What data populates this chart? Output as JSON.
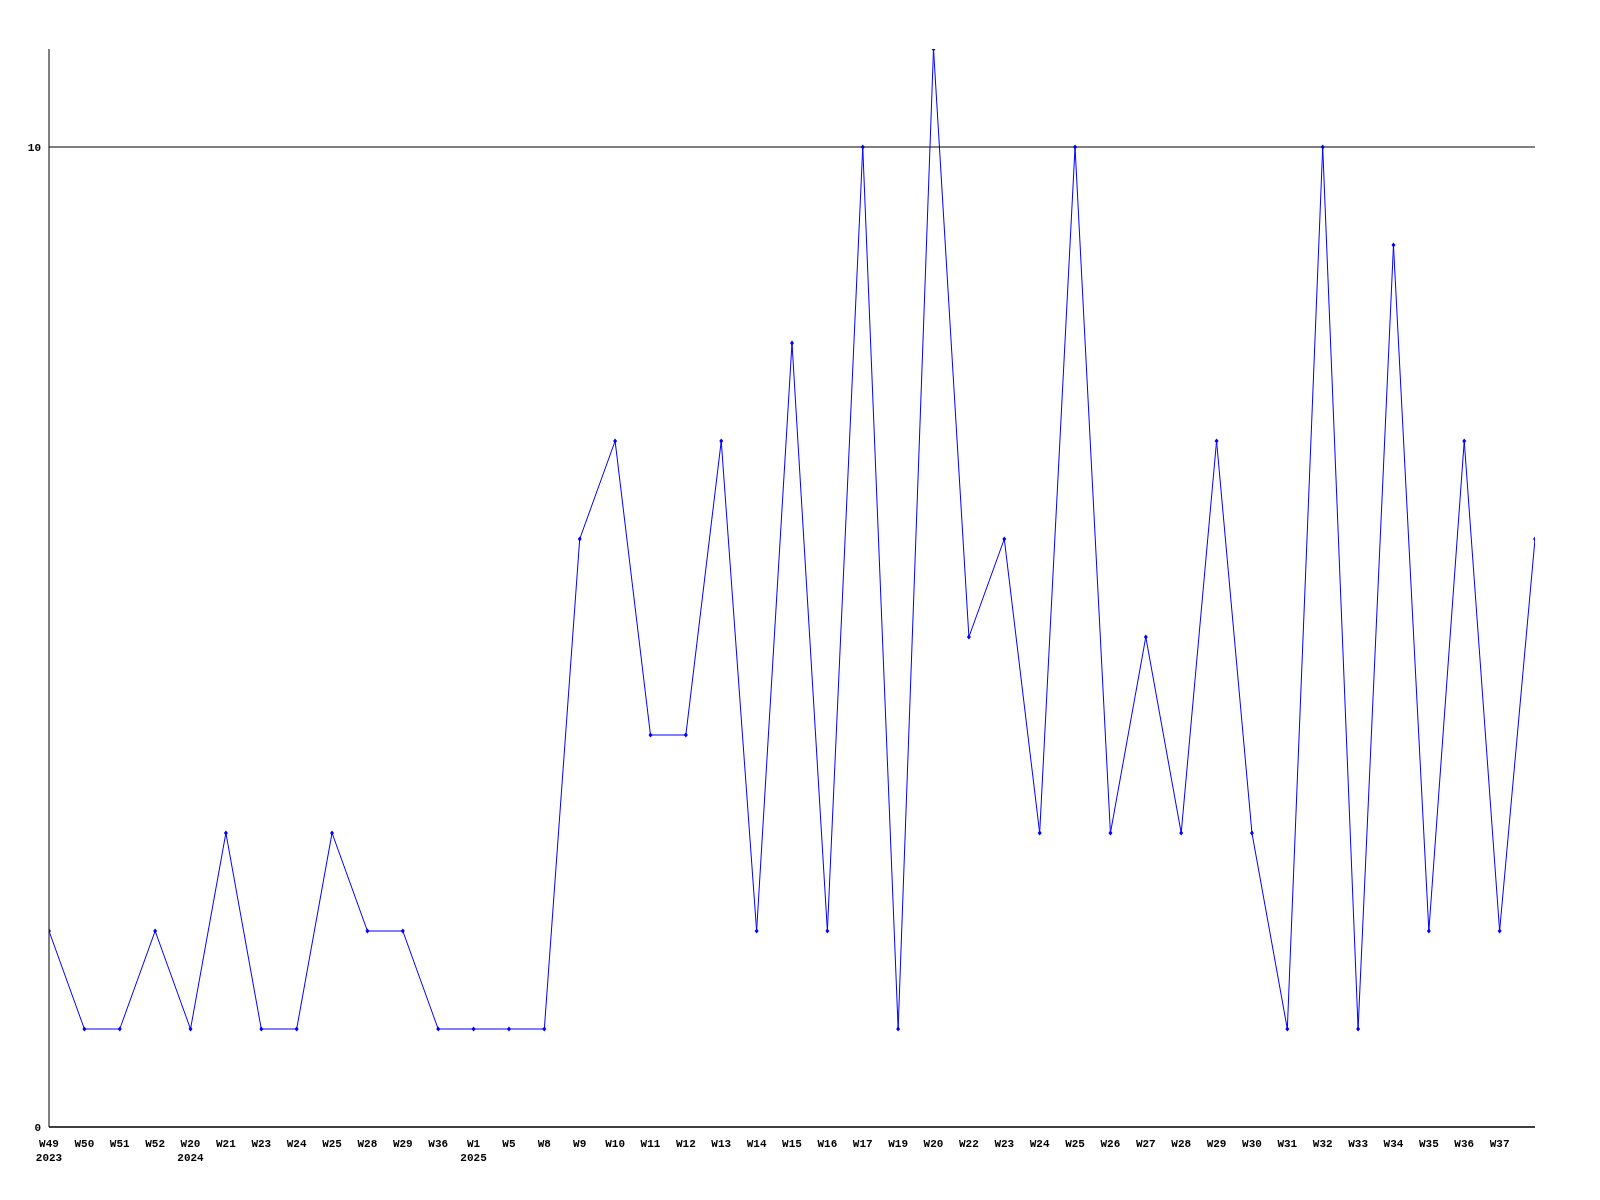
{
  "chart_data": {
    "type": "line",
    "categories": [
      "W49\n2023",
      "W50",
      "W51",
      "W52",
      "W20\n2024",
      "W21",
      "W23",
      "W24",
      "W25",
      "W28",
      "W29",
      "W36",
      "W1\n2025",
      "W5",
      "W8",
      "W9",
      "W10",
      "W11",
      "W12",
      "W13",
      "W14",
      "W15",
      "W16",
      "W17",
      "W19",
      "W20",
      "W22",
      "W23",
      "W24",
      "W25",
      "W26",
      "W27",
      "W28",
      "W29",
      "W30",
      "W31",
      "W32",
      "W33",
      "W34",
      "W35",
      "W36",
      "W37",
      null
    ],
    "series": [
      {
        "color": "#0000ff",
        "values": [
          2,
          1,
          1,
          2,
          1,
          3,
          1,
          1,
          3,
          2,
          2,
          1,
          1,
          1,
          1,
          6,
          7,
          4,
          4,
          7,
          2,
          8,
          2,
          10,
          1,
          11,
          5,
          6,
          3,
          10,
          3,
          5,
          3,
          7,
          3,
          1,
          10,
          1,
          9,
          2,
          7,
          2,
          6
        ]
      }
    ],
    "ylim": [
      0,
      11
    ],
    "yticks": [
      0,
      10
    ],
    "grid": "y",
    "marker": "diamond",
    "line_style": "solid"
  }
}
